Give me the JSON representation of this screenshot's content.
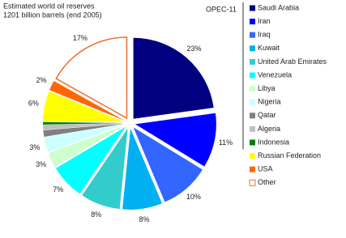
{
  "chart_data": {
    "type": "pie",
    "title": "Estimated world oil reserves",
    "subtitle": "1201 billion barrels (end 2005)",
    "legend_group": "OPEC-11",
    "categories": [
      "Saudi Arabia",
      "Iran",
      "Iraq",
      "Kuwait",
      "United Arab Emirates",
      "Venezuela",
      "Libya",
      "Nigeria",
      "Qatar",
      "Algeria",
      "Indonesia",
      "Russian Federation",
      "USA",
      "Other"
    ],
    "values": [
      23,
      11,
      10,
      8,
      8,
      7,
      3,
      3,
      1.3,
      1,
      0.5,
      6,
      2,
      17
    ],
    "value_labels": [
      "23%",
      "11%",
      "10%",
      "8%",
      "8%",
      "7%",
      "3%",
      "3%",
      null,
      null,
      null,
      "6%",
      "2%",
      "17%"
    ],
    "colors": [
      "#000080",
      "#0000ff",
      "#3366ff",
      "#00b0f0",
      "#33cccc",
      "#00ffff",
      "#ccffcc",
      "#ccffff",
      "#808080",
      "#c0c0c0",
      "#008000",
      "#ffff00",
      "#ff6600",
      "#ffffff"
    ],
    "outline_color": "#f07030",
    "legend_group_size": 11,
    "legend": "right"
  }
}
